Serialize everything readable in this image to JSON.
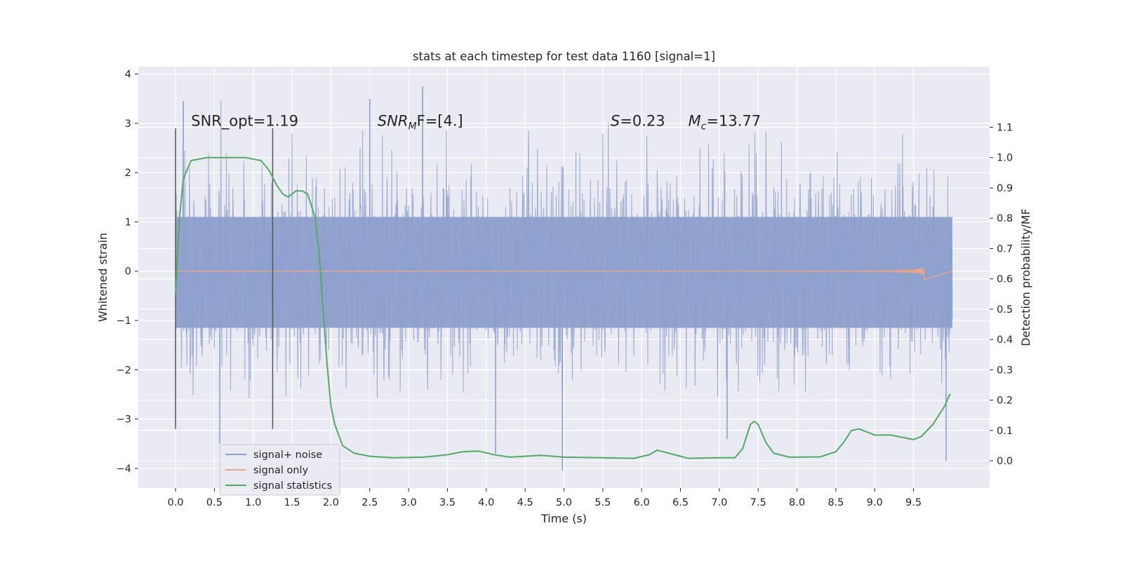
{
  "chart_data": {
    "type": "line",
    "title": "stats at each timestep for test data 1160 [signal=1]",
    "xlabel": "Time (s)",
    "ylabel": "Whitened strain",
    "y2label": "Detection probability/MF",
    "xlim": [
      -0.48,
      10.48
    ],
    "ylim": [
      -4.4,
      4.15
    ],
    "y2lim": [
      -0.09,
      1.3
    ],
    "x_ticks": [
      "0.0",
      "0.5",
      "1.0",
      "1.5",
      "2.0",
      "2.5",
      "3.0",
      "3.5",
      "4.0",
      "4.5",
      "5.0",
      "5.5",
      "6.0",
      "6.5",
      "7.0",
      "7.5",
      "8.0",
      "8.5",
      "9.0",
      "9.5"
    ],
    "y_ticks": [
      "-4",
      "-3",
      "-2",
      "-1",
      "0",
      "1",
      "2",
      "3",
      "4"
    ],
    "y2_ticks": [
      "0.0",
      "0.1",
      "0.2",
      "0.3",
      "0.4",
      "0.5",
      "0.6",
      "0.7",
      "0.8",
      "0.9",
      "1.0",
      "1.1"
    ],
    "grid": true,
    "legend_position": "lower-left",
    "annotations": [
      {
        "label": "SNR_opt=1.19",
        "x": 0.2,
        "y": 2.95
      },
      {
        "label_main": "SNR",
        "label_sub": "M",
        "label_rest": "F=[4.]",
        "x": 2.6,
        "y": 2.95
      },
      {
        "label_main": "S",
        "label_rest": "=0.23",
        "x": 5.6,
        "y": 2.95
      },
      {
        "label_main": "M",
        "label_sub": "c",
        "label_rest": "=13.77",
        "x": 6.6,
        "y": 2.95
      }
    ],
    "vlines": [
      {
        "x": 0.0,
        "ymin": -3.2,
        "ymax": 2.9
      },
      {
        "x": 1.25,
        "ymin": -3.2,
        "ymax": 2.9
      }
    ],
    "series": [
      {
        "name": "signal+ noise",
        "color": "#8da0cb",
        "x_range": [
          0.0,
          10.0
        ],
        "core_band": [
          -1.15,
          1.1
        ],
        "envelope": [
          -2.6,
          3.5
        ],
        "extreme_peaks": [
          {
            "x": 0.1,
            "y": 3.45
          },
          {
            "x": 2.5,
            "y": 3.5
          },
          {
            "x": 3.18,
            "y": 3.75
          },
          {
            "x": 0.57,
            "y": -3.5
          },
          {
            "x": 4.12,
            "y": -3.7
          },
          {
            "x": 4.98,
            "y": -4.05
          },
          {
            "x": 9.92,
            "y": -3.85
          },
          {
            "x": 7.1,
            "y": -3.4
          }
        ]
      },
      {
        "name": "signal only",
        "color": "#e8a58a",
        "x_range": [
          0.0,
          10.0
        ],
        "chirp_end": 9.65,
        "max_amplitude": 0.22
      },
      {
        "name": "signal statistics",
        "color": "#55a868",
        "axis": "y2",
        "points": [
          [
            0.0,
            0.55
          ],
          [
            0.05,
            0.8
          ],
          [
            0.1,
            0.93
          ],
          [
            0.2,
            0.99
          ],
          [
            0.4,
            1.0
          ],
          [
            0.6,
            1.0
          ],
          [
            0.9,
            1.0
          ],
          [
            1.1,
            0.99
          ],
          [
            1.2,
            0.96
          ],
          [
            1.3,
            0.91
          ],
          [
            1.38,
            0.88
          ],
          [
            1.45,
            0.87
          ],
          [
            1.55,
            0.89
          ],
          [
            1.63,
            0.89
          ],
          [
            1.7,
            0.88
          ],
          [
            1.8,
            0.8
          ],
          [
            1.85,
            0.68
          ],
          [
            1.9,
            0.5
          ],
          [
            1.95,
            0.32
          ],
          [
            2.0,
            0.18
          ],
          [
            2.05,
            0.12
          ],
          [
            2.15,
            0.05
          ],
          [
            2.3,
            0.025
          ],
          [
            2.5,
            0.015
          ],
          [
            2.8,
            0.01
          ],
          [
            3.2,
            0.012
          ],
          [
            3.5,
            0.02
          ],
          [
            3.7,
            0.03
          ],
          [
            3.9,
            0.032
          ],
          [
            4.1,
            0.02
          ],
          [
            4.3,
            0.012
          ],
          [
            4.5,
            0.015
          ],
          [
            4.7,
            0.018
          ],
          [
            5.0,
            0.012
          ],
          [
            5.5,
            0.01
          ],
          [
            5.9,
            0.008
          ],
          [
            6.1,
            0.02
          ],
          [
            6.2,
            0.035
          ],
          [
            6.35,
            0.025
          ],
          [
            6.6,
            0.008
          ],
          [
            7.0,
            0.01
          ],
          [
            7.2,
            0.01
          ],
          [
            7.3,
            0.04
          ],
          [
            7.4,
            0.12
          ],
          [
            7.45,
            0.13
          ],
          [
            7.5,
            0.12
          ],
          [
            7.6,
            0.06
          ],
          [
            7.7,
            0.025
          ],
          [
            7.9,
            0.012
          ],
          [
            8.3,
            0.013
          ],
          [
            8.5,
            0.03
          ],
          [
            8.6,
            0.06
          ],
          [
            8.7,
            0.1
          ],
          [
            8.8,
            0.105
          ],
          [
            9.0,
            0.085
          ],
          [
            9.2,
            0.085
          ],
          [
            9.4,
            0.075
          ],
          [
            9.5,
            0.07
          ],
          [
            9.6,
            0.08
          ],
          [
            9.75,
            0.12
          ],
          [
            9.9,
            0.18
          ],
          [
            9.97,
            0.22
          ]
        ]
      }
    ]
  }
}
